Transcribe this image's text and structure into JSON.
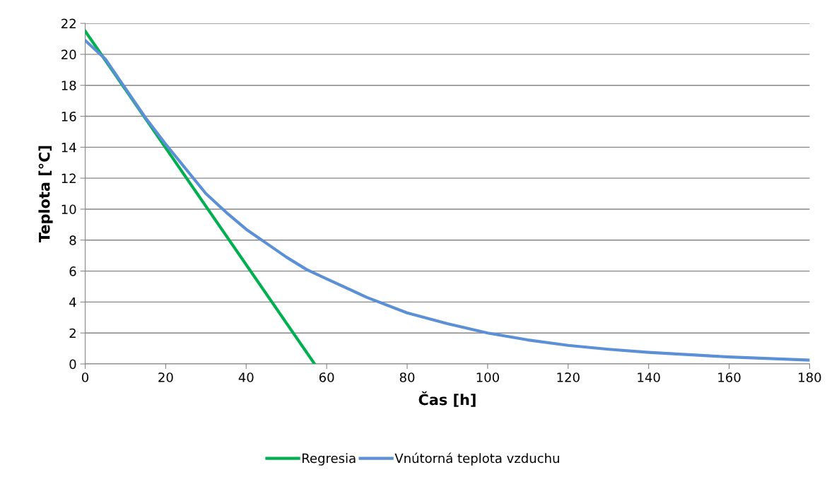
{
  "chart_data": {
    "type": "line",
    "xlabel": "Čas [h]",
    "ylabel": "Teplota [°C]",
    "xlim": [
      0,
      180
    ],
    "xticks": [
      0,
      20,
      40,
      60,
      80,
      100,
      120,
      140,
      160,
      180
    ],
    "ylim": [
      0,
      22
    ],
    "yticks": [
      0,
      2,
      4,
      6,
      8,
      10,
      12,
      14,
      16,
      18,
      20,
      22
    ],
    "grid": "y",
    "legend": "bottom",
    "marker": "none",
    "line_style": "solid",
    "series": [
      {
        "name": "Regresia",
        "color": "#00b050",
        "x": [
          0,
          57
        ],
        "values": [
          21.5,
          0
        ]
      },
      {
        "name": "Vnútorná teplota vzduchu",
        "color": "#5b8fd6",
        "x": [
          0,
          5,
          10,
          15,
          20,
          25,
          30,
          35,
          40,
          45,
          50,
          55,
          60,
          70,
          80,
          90,
          100,
          110,
          120,
          130,
          140,
          150,
          160,
          170,
          180
        ],
        "values": [
          20.9,
          19.7,
          17.8,
          15.9,
          14.2,
          12.6,
          11.0,
          9.8,
          8.7,
          7.8,
          6.9,
          6.1,
          5.5,
          4.3,
          3.3,
          2.6,
          2.0,
          1.55,
          1.2,
          0.95,
          0.75,
          0.6,
          0.45,
          0.35,
          0.25
        ]
      }
    ]
  }
}
